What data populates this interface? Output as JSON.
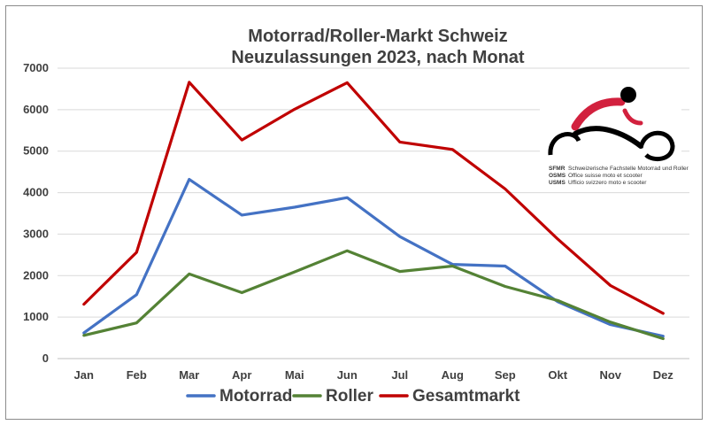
{
  "chart_data": {
    "type": "line",
    "title": [
      "Motorrad/Roller-Markt Schweiz",
      "Neuzulassungen 2023, nach Monat"
    ],
    "categories": [
      "Jan",
      "Feb",
      "Mar",
      "Apr",
      "Mai",
      "Jun",
      "Jul",
      "Aug",
      "Sep",
      "Okt",
      "Nov",
      "Dez"
    ],
    "ylim": [
      0,
      7000
    ],
    "yticks": [
      0,
      1000,
      2000,
      3000,
      4000,
      5000,
      6000,
      7000
    ],
    "grid": true,
    "legend_position": "bottom",
    "series": [
      {
        "name": "Motorrad",
        "color": "#4472C4",
        "values": [
          620,
          1540,
          4320,
          3460,
          3650,
          3880,
          2940,
          2270,
          2230,
          1370,
          820,
          540
        ]
      },
      {
        "name": "Roller",
        "color": "#548235",
        "values": [
          560,
          860,
          2040,
          1590,
          2090,
          2600,
          2100,
          2230,
          1740,
          1400,
          880,
          480
        ]
      },
      {
        "name": "Gesamtmarkt",
        "color": "#C00000",
        "values": [
          1310,
          2560,
          6660,
          5270,
          6010,
          6650,
          5220,
          5040,
          4090,
          2880,
          1760,
          1090
        ]
      }
    ]
  },
  "logo": {
    "lines": [
      {
        "abbr": "SFMR",
        "text": "Schweizerische Fachstelle Motorrad und Roller"
      },
      {
        "abbr": "OSMS",
        "text": "Office suisse moto et scooter"
      },
      {
        "abbr": "USMS",
        "text": "Ufficio svizzero moto e scooter"
      }
    ]
  }
}
